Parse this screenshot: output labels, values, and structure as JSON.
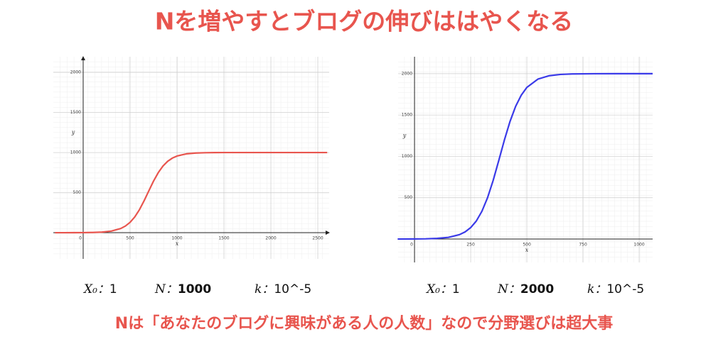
{
  "title": "Nを増やすとブログの伸びははやくなる",
  "caption": "Nは「あなたのブログに興味がある人の人数」なので分野選びは超大事",
  "chart_data": [
    {
      "type": "line",
      "xlabel": "x",
      "ylabel": "y",
      "grid": true,
      "x": [
        -300,
        -200,
        -100,
        0,
        100,
        200,
        300,
        400,
        450,
        500,
        550,
        600,
        650,
        700,
        750,
        800,
        850,
        900,
        950,
        1000,
        1100,
        1200,
        1300,
        1400,
        1500,
        1700,
        2000,
        2300,
        2600
      ],
      "series": [
        {
          "color": "#e8554e",
          "values": [
            0,
            0.1,
            0.4,
            1,
            2.7,
            7.3,
            19.7,
            51.8,
            82.7,
            129.3,
            196.7,
            287.7,
            399.7,
            523.3,
            644.1,
            748.9,
            831,
            890.2,
            930.4,
            956.6,
            983.6,
            993.9,
            997.7,
            999.2,
            999.7,
            1000,
            1000,
            1000,
            1000
          ]
        }
      ],
      "xlim": [
        -318,
        2621
      ],
      "ylim": [
        -327,
        2195
      ],
      "xticks": [
        0,
        500,
        1000,
        1500,
        2000,
        2500
      ],
      "yticks": [
        500,
        1000,
        1500,
        2000
      ],
      "params": [
        {
          "name": "X₀：",
          "value": 1
        },
        {
          "name": "N：",
          "value": 1000,
          "color": "#e8554e"
        },
        {
          "name": "k：",
          "value": "10^-5"
        }
      ]
    },
    {
      "type": "line",
      "xlabel": "x",
      "ylabel": "y",
      "grid": true,
      "x": [
        -75,
        0,
        50,
        100,
        150,
        200,
        225,
        250,
        275,
        300,
        325,
        350,
        375,
        400,
        425,
        450,
        475,
        500,
        550,
        600,
        650,
        700,
        800,
        900,
        1000,
        1060
      ],
      "series": [
        {
          "color": "#3a3ae8",
          "values": [
            0.2,
            1,
            2.7,
            7.4,
            19.9,
            53.2,
            86.2,
            138.2,
            217.9,
            335.8,
            499.4,
            708.5,
            949.9,
            1197.1,
            1421.6,
            1604.3,
            1739.8,
            1833.6,
            1935.4,
            1975.7,
            1991,
            1996.7,
            1999.6,
            2000,
            2000,
            2000
          ]
        }
      ],
      "xlim": [
        -73,
        1060
      ],
      "ylim": [
        -283,
        2205
      ],
      "xticks": [
        0,
        250,
        500,
        750,
        1000
      ],
      "yticks": [
        500,
        1000,
        1500,
        2000
      ],
      "params": [
        {
          "name": "X₀：",
          "value": 1
        },
        {
          "name": "N：",
          "value": 2000,
          "color": "#e8554e"
        },
        {
          "name": "k：",
          "value": "10^-5"
        }
      ]
    }
  ]
}
